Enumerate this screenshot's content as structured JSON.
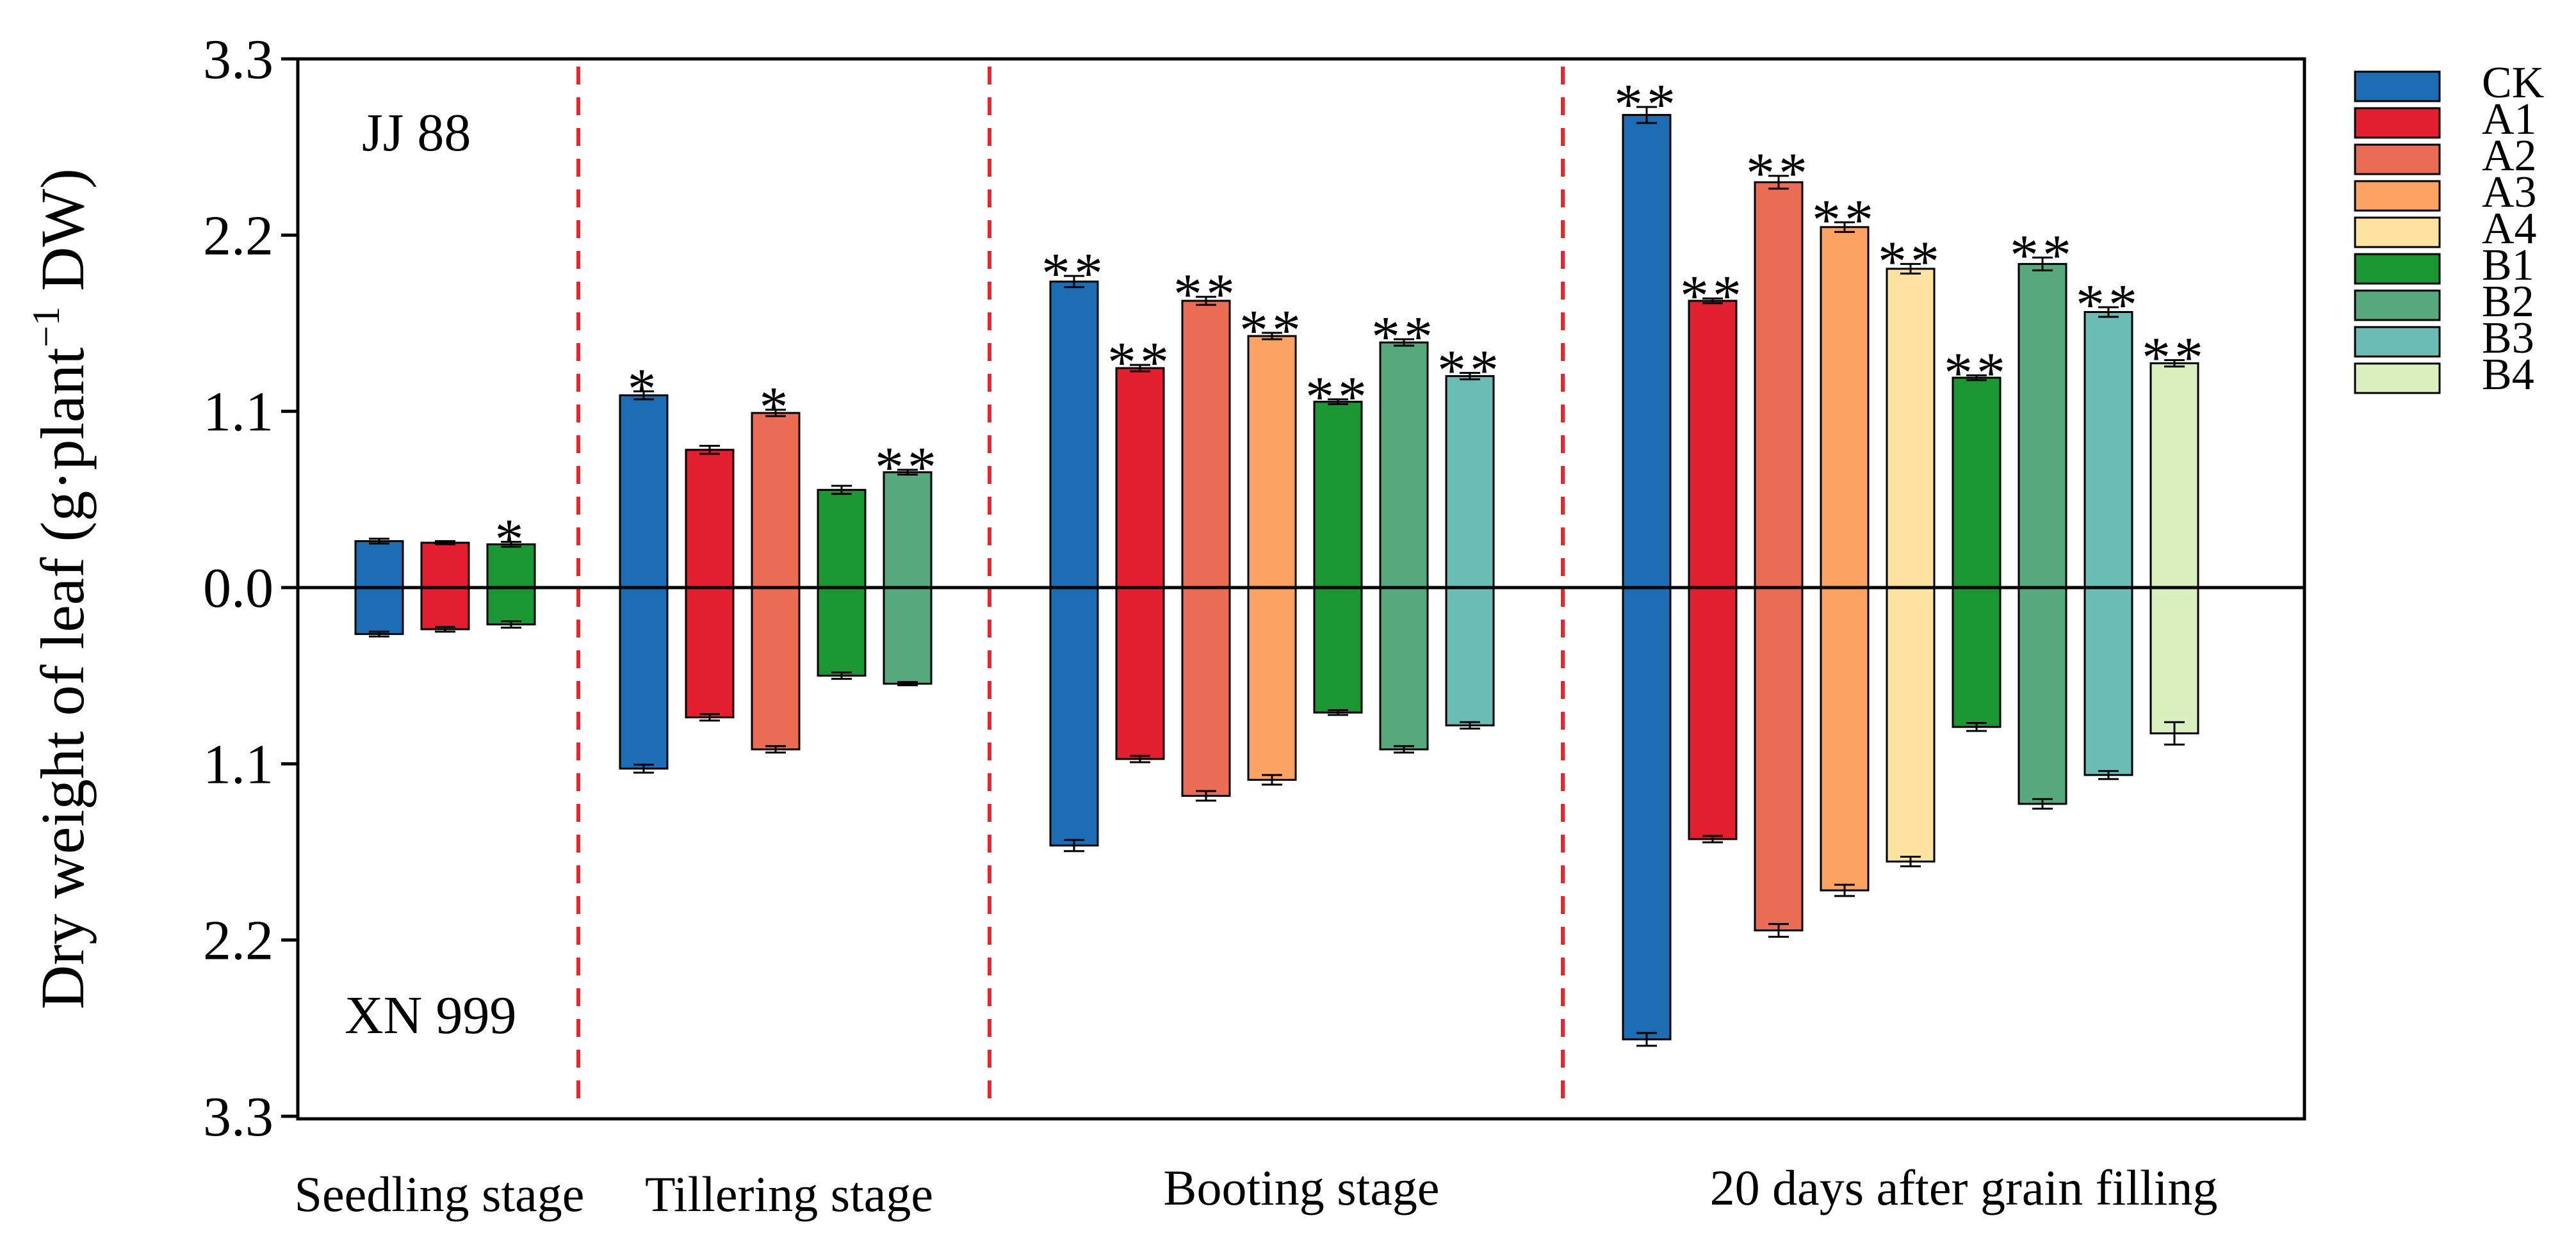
{
  "chart_data": {
    "type": "bar",
    "title": "",
    "ylabel_main": "Dry weight of leaf (g·plant",
    "ylabel_sup": "−1",
    "ylabel_tail": " DW)",
    "ylim": [
      -3.3,
      3.3
    ],
    "yticks": [
      {
        "value": 3.3,
        "label": "3.3"
      },
      {
        "value": 2.2,
        "label": "2.2"
      },
      {
        "value": 1.1,
        "label": "1.1"
      },
      {
        "value": 0.0,
        "label": "0.0"
      },
      {
        "value": -1.1,
        "label": "1.1"
      },
      {
        "value": -2.2,
        "label": "2.2"
      },
      {
        "value": -3.3,
        "label": "3.3"
      }
    ],
    "top_variety": "JJ 88",
    "bottom_variety": "XN 999",
    "legend": [
      {
        "name": "CK",
        "color": "#1c6db4"
      },
      {
        "name": "A1",
        "color": "#e31e2f"
      },
      {
        "name": "A2",
        "color": "#eb6c55"
      },
      {
        "name": "A3",
        "color": "#fca262"
      },
      {
        "name": "A4",
        "color": "#fee3a0"
      },
      {
        "name": "B1",
        "color": "#1c9632"
      },
      {
        "name": "B2",
        "color": "#55a97c"
      },
      {
        "name": "B3",
        "color": "#6bbcb4"
      },
      {
        "name": "B4",
        "color": "#d9efc0"
      }
    ],
    "stages": [
      {
        "label": "Seedling stage",
        "bars": [
          {
            "series": "CK",
            "top": 0.29,
            "top_err": 0.015,
            "bottom": 0.29,
            "bottom_err": 0.015,
            "sig": ""
          },
          {
            "series": "A1",
            "top": 0.28,
            "top_err": 0.01,
            "bottom": 0.26,
            "bottom_err": 0.015,
            "sig": ""
          },
          {
            "series": "B1",
            "top": 0.27,
            "top_err": 0.015,
            "bottom": 0.23,
            "bottom_err": 0.02,
            "sig": "*"
          }
        ]
      },
      {
        "label": "Tillering stage",
        "bars": [
          {
            "series": "CK",
            "top": 1.2,
            "top_err": 0.025,
            "bottom": 1.13,
            "bottom_err": 0.025,
            "sig": "*"
          },
          {
            "series": "A1",
            "top": 0.86,
            "top_err": 0.025,
            "bottom": 0.81,
            "bottom_err": 0.02,
            "sig": ""
          },
          {
            "series": "A2",
            "top": 1.09,
            "top_err": 0.02,
            "bottom": 1.01,
            "bottom_err": 0.02,
            "sig": "*"
          },
          {
            "series": "B1",
            "top": 0.61,
            "top_err": 0.025,
            "bottom": 0.55,
            "bottom_err": 0.02,
            "sig": ""
          },
          {
            "series": "B2",
            "top": 0.72,
            "top_err": 0.015,
            "bottom": 0.6,
            "bottom_err": 0.01,
            "sig": "**"
          }
        ]
      },
      {
        "label": "Booting stage",
        "bars": [
          {
            "series": "CK",
            "top": 1.91,
            "top_err": 0.035,
            "bottom": 1.61,
            "bottom_err": 0.035,
            "sig": "**"
          },
          {
            "series": "A1",
            "top": 1.37,
            "top_err": 0.02,
            "bottom": 1.07,
            "bottom_err": 0.02,
            "sig": "**"
          },
          {
            "series": "A2",
            "top": 1.79,
            "top_err": 0.025,
            "bottom": 1.3,
            "bottom_err": 0.03,
            "sig": "**"
          },
          {
            "series": "A3",
            "top": 1.57,
            "top_err": 0.02,
            "bottom": 1.2,
            "bottom_err": 0.03,
            "sig": "**"
          },
          {
            "series": "B1",
            "top": 1.16,
            "top_err": 0.015,
            "bottom": 0.78,
            "bottom_err": 0.015,
            "sig": "**"
          },
          {
            "series": "B2",
            "top": 1.53,
            "top_err": 0.02,
            "bottom": 1.01,
            "bottom_err": 0.02,
            "sig": "**"
          },
          {
            "series": "B3",
            "top": 1.32,
            "top_err": 0.02,
            "bottom": 0.86,
            "bottom_err": 0.02,
            "sig": "**"
          }
        ]
      },
      {
        "label": "20 days after grain filling",
        "bars": [
          {
            "series": "CK",
            "top": 2.95,
            "top_err": 0.05,
            "bottom": 2.82,
            "bottom_err": 0.04,
            "sig": "**"
          },
          {
            "series": "A1",
            "top": 1.79,
            "top_err": 0.015,
            "bottom": 1.57,
            "bottom_err": 0.02,
            "sig": "**"
          },
          {
            "series": "A2",
            "top": 2.53,
            "top_err": 0.04,
            "bottom": 2.14,
            "bottom_err": 0.04,
            "sig": "**"
          },
          {
            "series": "A3",
            "top": 2.25,
            "top_err": 0.03,
            "bottom": 1.89,
            "bottom_err": 0.035,
            "sig": "**"
          },
          {
            "series": "A4",
            "top": 1.99,
            "top_err": 0.03,
            "bottom": 1.71,
            "bottom_err": 0.03,
            "sig": "**"
          },
          {
            "series": "B1",
            "top": 1.31,
            "top_err": 0.015,
            "bottom": 0.87,
            "bottom_err": 0.025,
            "sig": "**"
          },
          {
            "series": "B2",
            "top": 2.02,
            "top_err": 0.04,
            "bottom": 1.35,
            "bottom_err": 0.03,
            "sig": "**"
          },
          {
            "series": "B3",
            "top": 1.72,
            "top_err": 0.03,
            "bottom": 1.17,
            "bottom_err": 0.025,
            "sig": "**"
          },
          {
            "series": "B4",
            "top": 1.4,
            "top_err": 0.02,
            "bottom": 0.91,
            "bottom_err": 0.07,
            "sig": "**"
          }
        ]
      }
    ]
  }
}
